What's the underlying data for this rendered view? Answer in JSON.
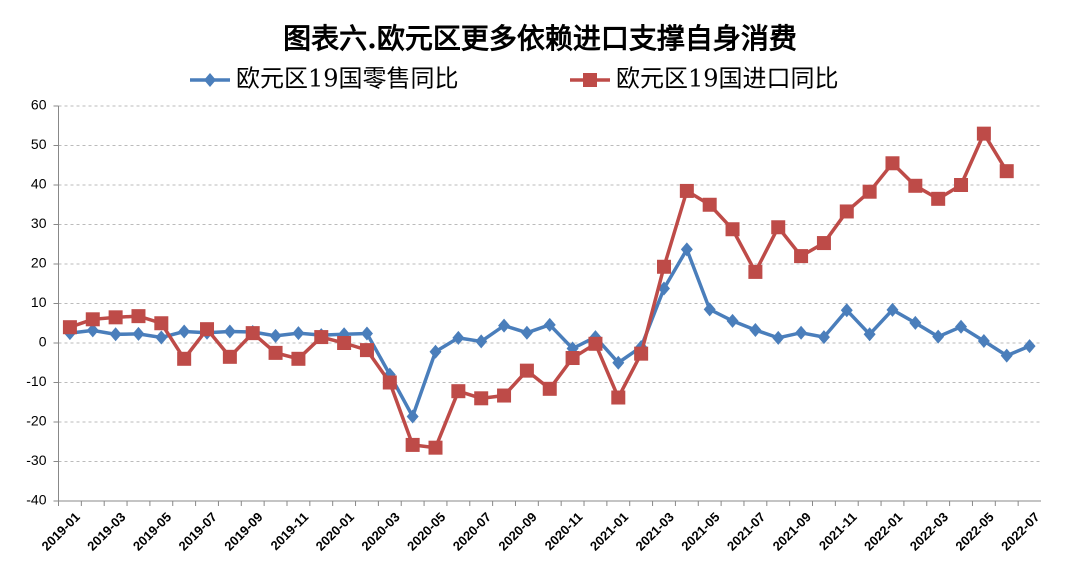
{
  "chart_data": {
    "type": "line",
    "title": "图表六.欧元区更多依赖进口支撑自身消费",
    "categories": [
      "2019-01",
      null,
      "2019-03",
      null,
      "2019-05",
      null,
      "2019-07",
      null,
      "2019-09",
      null,
      "2019-11",
      null,
      "2020-01",
      null,
      "2020-03",
      null,
      "2020-05",
      null,
      "2020-07",
      null,
      "2020-09",
      null,
      "2020-11",
      null,
      "2021-01",
      null,
      "2021-03",
      null,
      "2021-05",
      null,
      "2021-07",
      null,
      "2021-09",
      null,
      "2021-11",
      null,
      "2022-01",
      null,
      "2022-03",
      null,
      "2022-05",
      null,
      "2022-07"
    ],
    "series": [
      {
        "name": "欧元区19国零售同比",
        "color": "#4a7ebb",
        "marker": "diamond",
        "values": [
          2.5,
          3.2,
          2.2,
          2.3,
          1.4,
          2.9,
          2.6,
          2.9,
          2.8,
          1.8,
          2.5,
          2.0,
          2.2,
          2.4,
          -8,
          -18.6,
          -2.2,
          1.3,
          0.4,
          4.4,
          2.6,
          4.6,
          -1.4,
          1.5,
          -5,
          -1,
          13.8,
          23.7,
          8.5,
          5.6,
          3.3,
          1.3,
          2.6,
          1.5,
          8.3,
          2.2,
          8.4,
          5.1,
          1.6,
          4.1,
          0.5,
          -3.2,
          -0.8
        ]
      },
      {
        "name": "欧元区19国进口同比",
        "color": "#be4b48",
        "marker": "square",
        "values": [
          4,
          6,
          6.5,
          6.8,
          5,
          -4,
          3.5,
          -3.5,
          2.5,
          -2.5,
          -4,
          1.5,
          0,
          -1.8,
          -10,
          -25.8,
          -26.5,
          -12.2,
          -14,
          -13.3,
          -7,
          -11.6,
          -3.8,
          -0.2,
          -13.8,
          -2.7,
          19.3,
          38.5,
          35,
          28.8,
          18,
          29.3,
          22,
          25.3,
          33.3,
          38.3,
          45.5,
          39.8,
          36.5,
          40,
          53,
          43.5,
          null
        ]
      }
    ],
    "ylim": [
      -40,
      60
    ],
    "yticks": [
      -40,
      -30,
      -20,
      -10,
      0,
      10,
      20,
      30,
      40,
      50,
      60
    ],
    "grid": true
  }
}
